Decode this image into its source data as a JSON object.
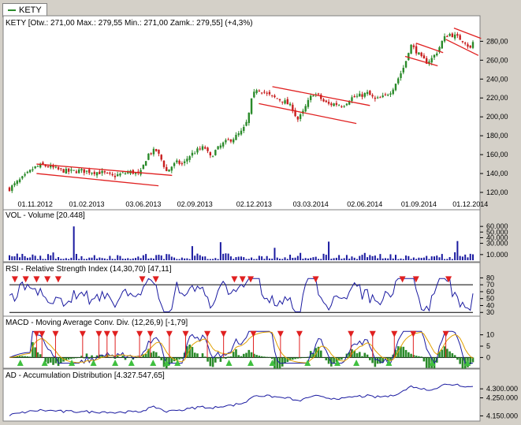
{
  "ticker_tab": "KETY",
  "colors": {
    "up": "#2a8a2a",
    "down": "#c81e1e",
    "line": "#1a1aa0",
    "channel": "#e02020",
    "signal": "#e0a000",
    "panel_bg": "#ffffff",
    "outer_bg": "#d4d0c8"
  },
  "chart_data": [
    {
      "type": "candlestick",
      "title": "KETY [Otw.: 271,00  Max.: 279,55  Min.: 271,00  Zamk.: 279,55] (+4,3%)",
      "x_ticks": [
        "01.11.2012",
        "01.02.2013",
        "03.06.2013",
        "02.09.2013",
        "02.12.2013",
        "03.03.2014",
        "02.06.2014",
        "01.09.2014",
        "01.12.2014"
      ],
      "y_ticks": [
        "120,00",
        "140,00",
        "160,00",
        "180,00",
        "200,00",
        "220,00",
        "240,00",
        "260,00",
        "280,00"
      ],
      "ylim": [
        115,
        292
      ],
      "close_path": [
        [
          0,
          124
        ],
        [
          3,
          131
        ],
        [
          6,
          138
        ],
        [
          9,
          146
        ],
        [
          12,
          149
        ],
        [
          15,
          147
        ],
        [
          18,
          144
        ],
        [
          22,
          142
        ],
        [
          26,
          143
        ],
        [
          30,
          142
        ],
        [
          34,
          141
        ],
        [
          38,
          137
        ],
        [
          42,
          140
        ],
        [
          45,
          142
        ],
        [
          48,
          138
        ],
        [
          51,
          160
        ],
        [
          54,
          165
        ],
        [
          56,
          155
        ],
        [
          58,
          142
        ],
        [
          60,
          148
        ],
        [
          62,
          152
        ],
        [
          64,
          149
        ],
        [
          66,
          158
        ],
        [
          69,
          164
        ],
        [
          72,
          168
        ],
        [
          74,
          157
        ],
        [
          76,
          164
        ],
        [
          79,
          172
        ],
        [
          83,
          178
        ],
        [
          86,
          185
        ],
        [
          88,
          197
        ],
        [
          89,
          215
        ],
        [
          91,
          230
        ],
        [
          93,
          228
        ],
        [
          95,
          224
        ],
        [
          97,
          221
        ],
        [
          99,
          219
        ],
        [
          101,
          217
        ],
        [
          103,
          213
        ],
        [
          105,
          207
        ],
        [
          106,
          196
        ],
        [
          108,
          203
        ],
        [
          110,
          215
        ],
        [
          112,
          225
        ],
        [
          114,
          222
        ],
        [
          116,
          216
        ],
        [
          118,
          213
        ],
        [
          120,
          214
        ],
        [
          123,
          212
        ],
        [
          126,
          220
        ],
        [
          129,
          222
        ],
        [
          132,
          225
        ],
        [
          135,
          218
        ],
        [
          138,
          221
        ],
        [
          141,
          228
        ],
        [
          144,
          244
        ],
        [
          146,
          256
        ],
        [
          147,
          268
        ],
        [
          148,
          276
        ],
        [
          150,
          270
        ],
        [
          152,
          262
        ],
        [
          154,
          258
        ],
        [
          156,
          262
        ],
        [
          158,
          270
        ],
        [
          160,
          282
        ],
        [
          162,
          288
        ],
        [
          164,
          286
        ],
        [
          166,
          283
        ],
        [
          168,
          280
        ],
        [
          170,
          272
        ],
        [
          171,
          279
        ]
      ],
      "channels": [
        {
          "from": [
            10,
            150
          ],
          "to": [
            60,
            138
          ]
        },
        {
          "from": [
            10,
            140
          ],
          "to": [
            55,
            127
          ]
        },
        {
          "from": [
            97,
            232
          ],
          "to": [
            133,
            212
          ]
        },
        {
          "from": [
            92,
            214
          ],
          "to": [
            128,
            193
          ]
        },
        {
          "from": [
            150,
            278
          ],
          "to": [
            160,
            268
          ]
        },
        {
          "from": [
            146,
            264
          ],
          "to": [
            158,
            254
          ]
        },
        {
          "from": [
            164,
            294
          ],
          "to": [
            174,
            283
          ]
        },
        {
          "from": [
            161,
            282
          ],
          "to": [
            173,
            265
          ]
        }
      ]
    },
    {
      "type": "bar",
      "title": "VOL - Volume [20.448]",
      "y_ticks": [
        "60.000",
        "50.000",
        "40.000",
        "30.000",
        "10.000"
      ],
      "ylim": [
        0,
        70000
      ],
      "volume_spikes": [
        [
          24,
          60000
        ],
        [
          78,
          32000
        ],
        [
          118,
          33000
        ],
        [
          165,
          34000
        ],
        [
          172,
          30000
        ],
        [
          67,
          25000
        ],
        [
          98,
          22000
        ]
      ]
    },
    {
      "type": "line",
      "title": "RSI - Relative Strength Index (14,30,70) [47,11]",
      "y_ticks": [
        "80",
        "70",
        "60",
        "50",
        "40",
        "30"
      ],
      "ylim": [
        28,
        85
      ],
      "levels": [
        30,
        70
      ],
      "overbought_markers": [
        2,
        6,
        10,
        14,
        18,
        49,
        54,
        83,
        86,
        89,
        113,
        145,
        150,
        162
      ]
    },
    {
      "type": "line",
      "title": "MACD - Moving Average Conv. Div. (12,26,9) [-1,79]",
      "y_ticks": [
        "10",
        "5",
        "0"
      ],
      "ylim": [
        -3,
        13
      ],
      "sell_markers": [
        10,
        12,
        17,
        27,
        33,
        36,
        39,
        48,
        52,
        59,
        65,
        73,
        79,
        90,
        100,
        107,
        126,
        134,
        142,
        149,
        161
      ],
      "buy_markers": [
        4,
        13,
        23,
        31,
        39,
        45,
        53,
        58,
        62,
        81,
        89,
        97,
        110,
        121,
        128,
        140,
        156,
        169
      ]
    },
    {
      "type": "line",
      "title": "AD - Accumulation Distribution [4.327.547,65]",
      "y_ticks": [
        "4.300.000",
        "4.250.000",
        "4.150.000"
      ],
      "ylim": [
        4130000,
        4340000
      ]
    }
  ]
}
